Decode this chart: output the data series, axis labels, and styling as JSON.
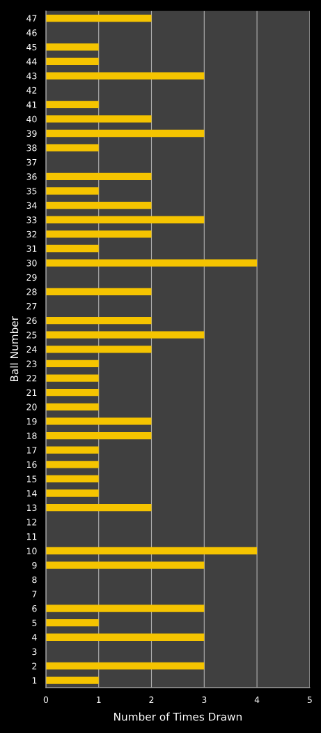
{
  "chart_data": {
    "type": "bar",
    "orientation": "horizontal",
    "xlabel": "Number of Times Drawn",
    "ylabel": "Ball Number",
    "categories": [
      "47",
      "46",
      "45",
      "44",
      "43",
      "42",
      "41",
      "40",
      "39",
      "38",
      "37",
      "36",
      "35",
      "34",
      "33",
      "32",
      "31",
      "30",
      "29",
      "28",
      "27",
      "26",
      "25",
      "24",
      "23",
      "22",
      "21",
      "20",
      "19",
      "18",
      "17",
      "16",
      "15",
      "14",
      "13",
      "12",
      "11",
      "10",
      "9",
      "8",
      "7",
      "6",
      "5",
      "4",
      "3",
      "2",
      "1"
    ],
    "series": [
      {
        "color": "#f5c400",
        "values": [
          2,
          0,
          1,
          1,
          3,
          0,
          1,
          2,
          3,
          1,
          0,
          2,
          1,
          2,
          3,
          2,
          1,
          4,
          0,
          2,
          0,
          2,
          3,
          2,
          1,
          1,
          1,
          1,
          2,
          2,
          1,
          1,
          1,
          1,
          2,
          0,
          0,
          4,
          3,
          0,
          0,
          3,
          1,
          3,
          0,
          3,
          1
        ]
      }
    ],
    "xlim": [
      0,
      5
    ],
    "xticks": [
      0,
      1,
      2,
      3,
      4,
      5
    ],
    "grid": "x",
    "legend": false
  }
}
